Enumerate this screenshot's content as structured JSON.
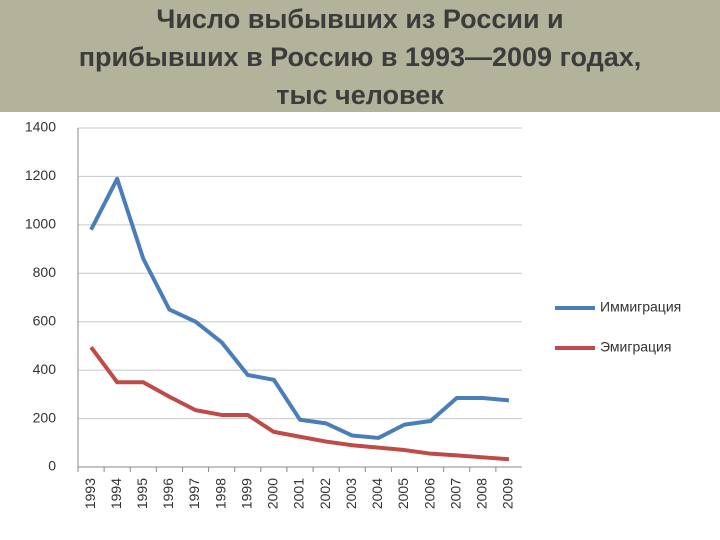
{
  "chart_data": {
    "type": "line",
    "title": [
      "Число выбывших из России и",
      "прибывших в Россию в 1993—2009 годах,",
      "тыс человек"
    ],
    "categories": [
      "1993",
      "1994",
      "1995",
      "1996",
      "1997",
      "1998",
      "1999",
      "2000",
      "2001",
      "2002",
      "2003",
      "2004",
      "2005",
      "2006",
      "2007",
      "2008",
      "2009"
    ],
    "series": [
      {
        "name": "Иммиграция",
        "color": "#4a7ebb",
        "values": [
          980,
          1190,
          860,
          650,
          600,
          515,
          380,
          360,
          195,
          180,
          130,
          120,
          175,
          190,
          285,
          285,
          275
        ]
      },
      {
        "name": "Эмиграция",
        "color": "#be4b48",
        "values": [
          495,
          350,
          350,
          290,
          235,
          215,
          215,
          145,
          125,
          105,
          90,
          80,
          70,
          55,
          48,
          40,
          32
        ]
      }
    ],
    "ylim": [
      0,
      1400
    ],
    "yticks": [
      0,
      200,
      400,
      600,
      800,
      1000,
      1200,
      1400
    ],
    "grid": true,
    "legend": "right"
  }
}
